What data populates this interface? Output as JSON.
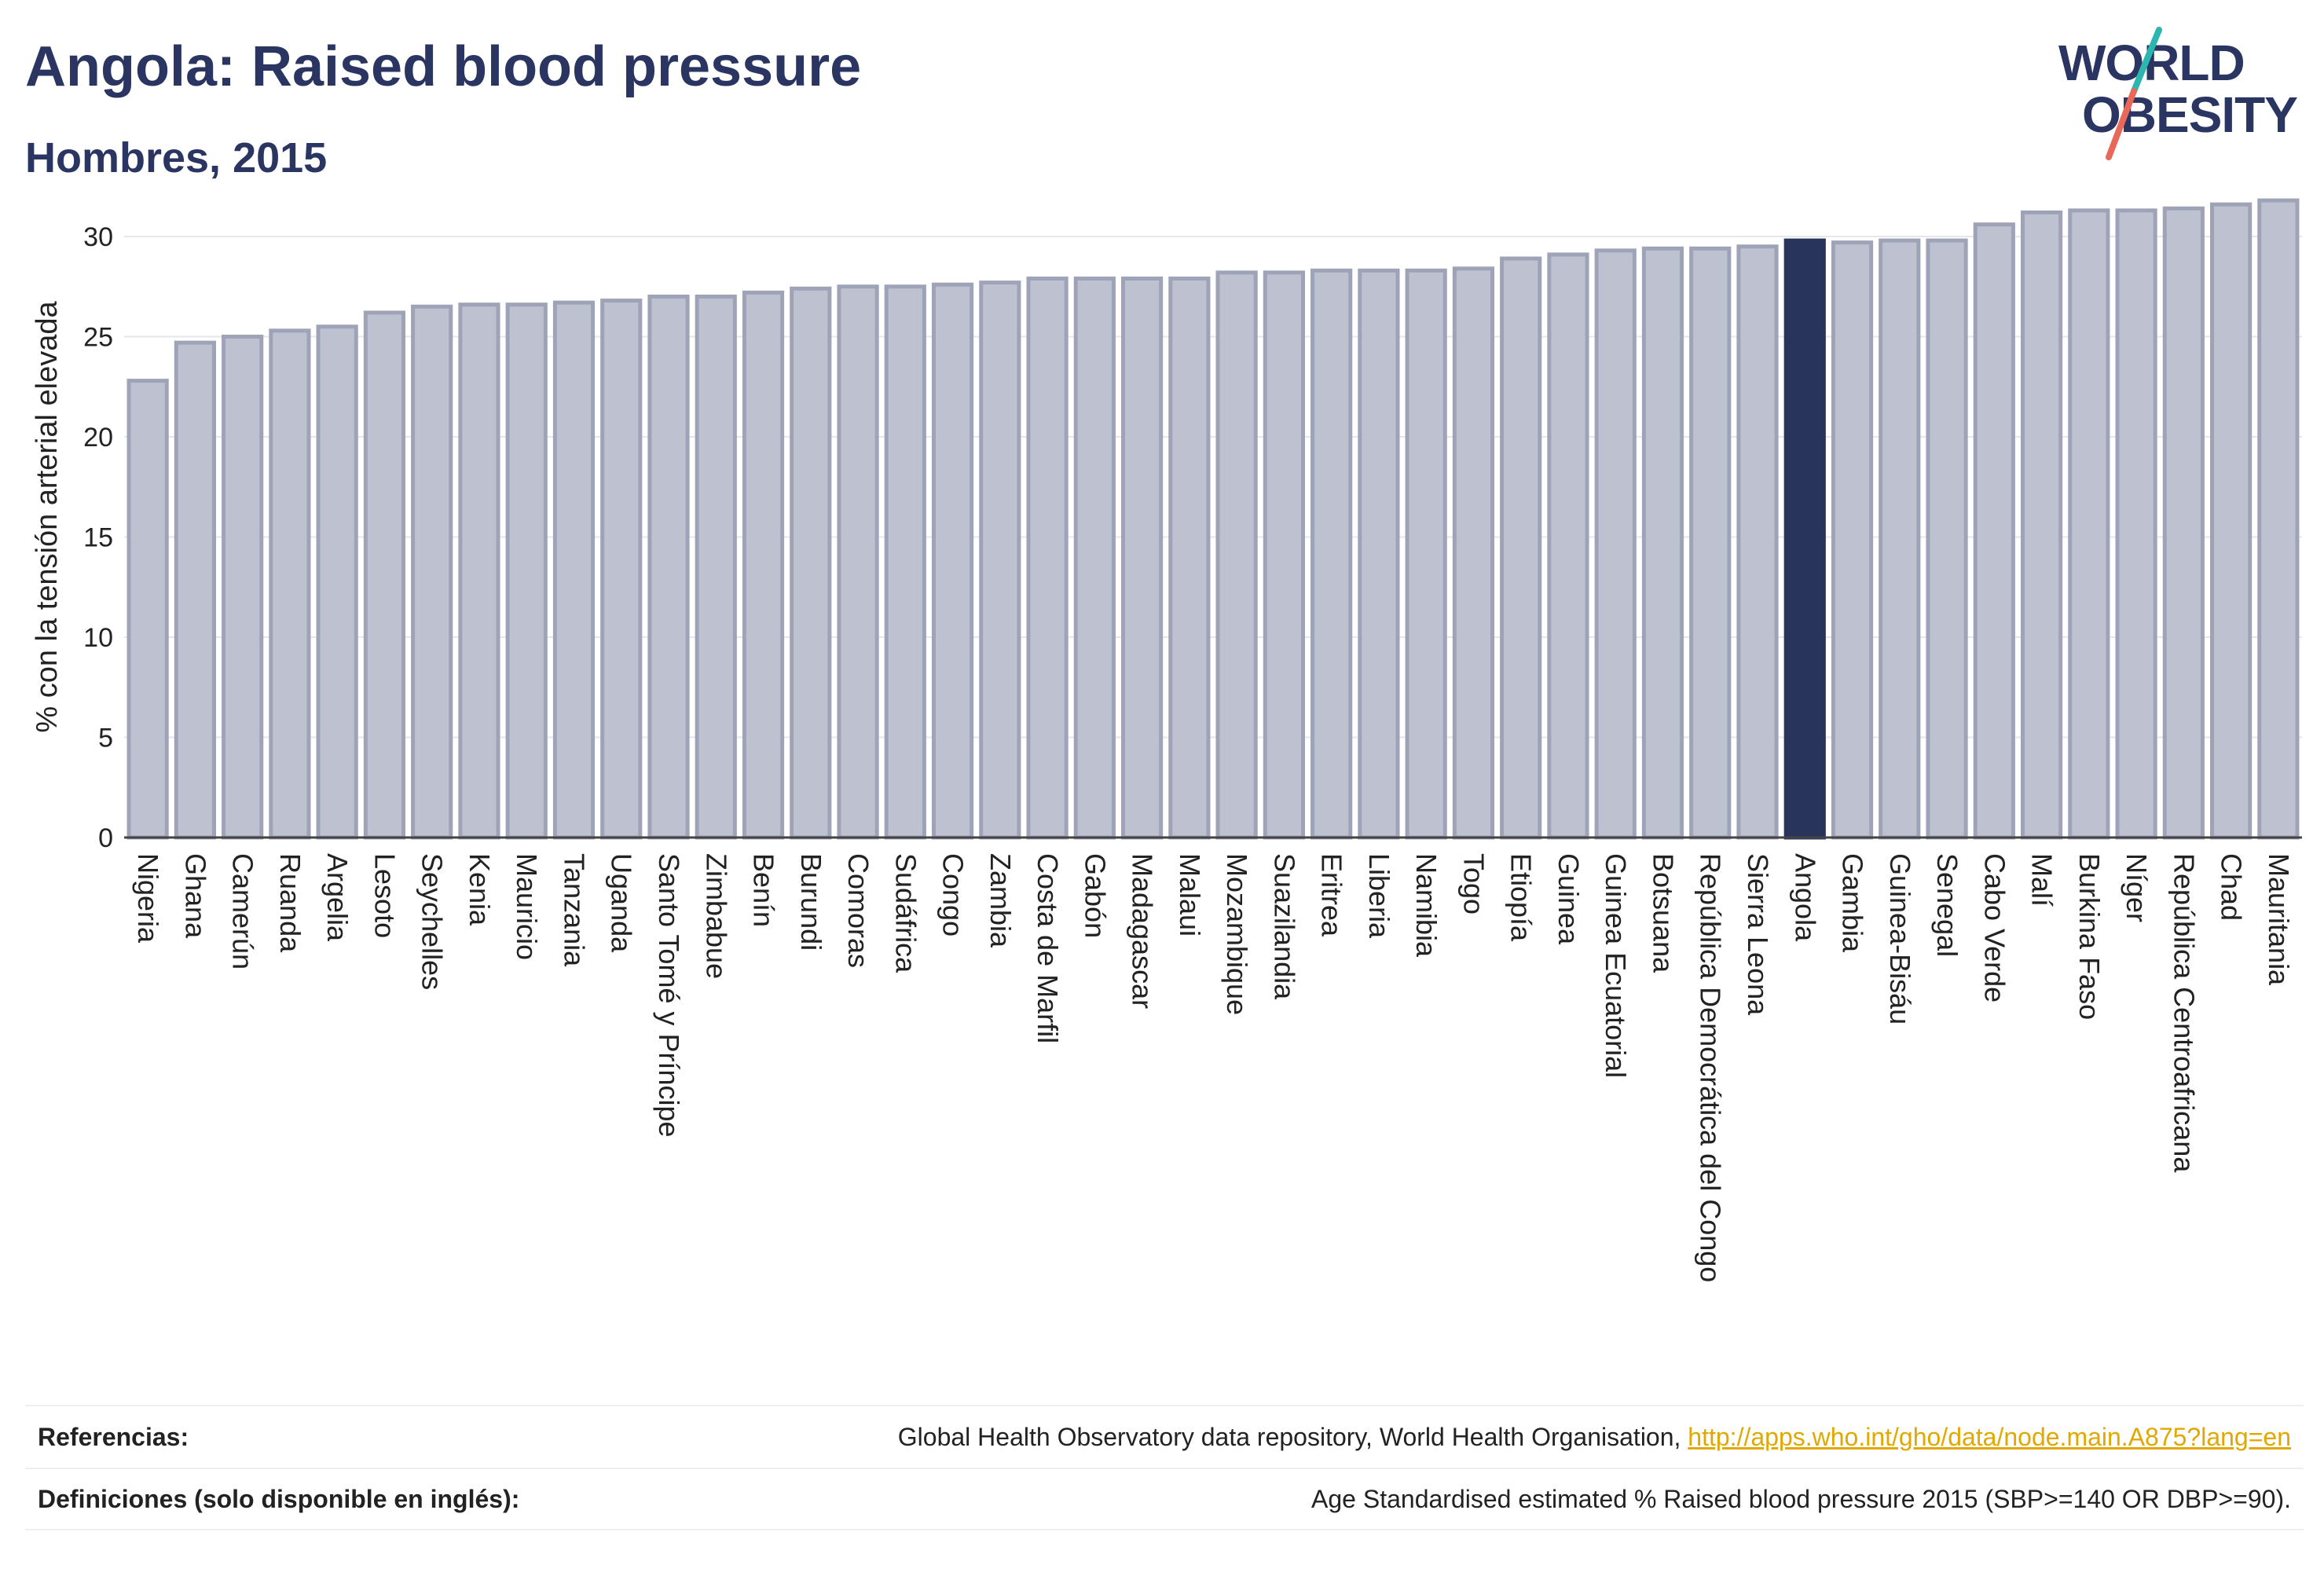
{
  "header": {
    "title": "Angola: Raised blood pressure",
    "subtitle": "Hombres, 2015"
  },
  "logo": {
    "line1": "WORLD",
    "line2": "OBESITY"
  },
  "colors": {
    "bar": "#bec1cf",
    "bar_border": "#9ea3b8",
    "highlight": "#29345d",
    "text": "#2a3561",
    "link": "#e0a800",
    "logo_teal": "#2bb7b0",
    "logo_coral": "#e8685a"
  },
  "chart_data": {
    "type": "bar",
    "ylabel": "% con la tensión arterial elevada",
    "ylim": [
      0,
      32
    ],
    "yticks": [
      0,
      5,
      10,
      15,
      20,
      25,
      30
    ],
    "grid": true,
    "highlight": "Angola",
    "categories": [
      "Nigeria",
      "Ghana",
      "Camerún",
      "Ruanda",
      "Argelia",
      "Lesoto",
      "Seychelles",
      "Kenia",
      "Mauricio",
      "Tanzania",
      "Uganda",
      "Santo Tomé y Príncipe",
      "Zimbabue",
      "Benín",
      "Burundi",
      "Comoras",
      "Sudáfrica",
      "Congo",
      "Zambia",
      "Costa de Marfil",
      "Gabón",
      "Madagascar",
      "Malaui",
      "Mozambique",
      "Suazilandia",
      "Eritrea",
      "Liberia",
      "Namibia",
      "Togo",
      "Etiopía",
      "Guinea",
      "Guinea Ecuatorial",
      "Botsuana",
      "República Democrática del Congo",
      "Sierra Leona",
      "Angola",
      "Gambia",
      "Guinea-Bisáu",
      "Senegal",
      "Cabo Verde",
      "Malí",
      "Burkina Faso",
      "Níger",
      "República Centroafricana",
      "Chad",
      "Mauritania"
    ],
    "values": [
      22.8,
      24.7,
      25.0,
      25.3,
      25.5,
      26.2,
      26.5,
      26.6,
      26.6,
      26.7,
      26.8,
      27.0,
      27.0,
      27.2,
      27.4,
      27.5,
      27.5,
      27.6,
      27.7,
      27.9,
      27.9,
      27.9,
      27.9,
      28.2,
      28.2,
      28.3,
      28.3,
      28.3,
      28.4,
      28.9,
      29.1,
      29.3,
      29.4,
      29.4,
      29.5,
      29.8,
      29.7,
      29.8,
      29.8,
      30.6,
      31.2,
      31.3,
      31.3,
      31.4,
      31.6,
      31.8
    ]
  },
  "footer": {
    "references_label": "Referencias:",
    "references_text": "Global Health Observatory data repository, World Health Organisation,",
    "references_link": "http://apps.who.int/gho/data/node.main.A875?lang=en",
    "definitions_label": "Definiciones (solo disponible en inglés):",
    "definitions_text": "Age Standardised estimated % Raised blood pressure 2015 (SBP>=140 OR DBP>=90)."
  }
}
